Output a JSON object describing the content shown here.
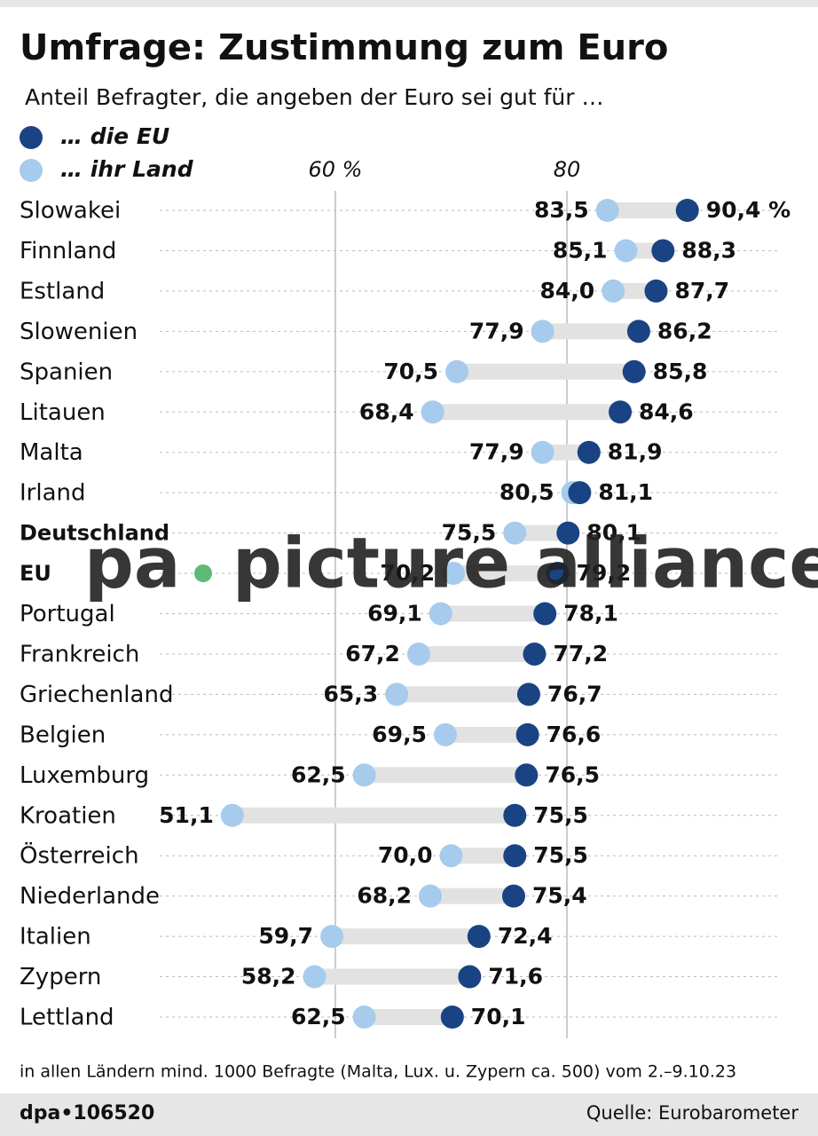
{
  "chart_data": {
    "type": "dumbbell",
    "title": "Umfrage: Zustimmung zum Euro",
    "subtitle": "Anteil Befragter, die angeben der Euro sei gut für …",
    "categories": [
      "Slowakei",
      "Finnland",
      "Estland",
      "Slowenien",
      "Spanien",
      "Litauen",
      "Malta",
      "Irland",
      "Deutschland",
      "EU",
      "Portugal",
      "Frankreich",
      "Griechenland",
      "Belgien",
      "Luxemburg",
      "Kroatien",
      "Österreich",
      "Niederlande",
      "Italien",
      "Zypern",
      "Lettland"
    ],
    "highlight_indices": [
      8,
      9
    ],
    "series": [
      {
        "name": "… die EU",
        "color": "#1a4383",
        "values": [
          90.4,
          88.3,
          87.7,
          86.2,
          85.8,
          84.6,
          81.9,
          81.1,
          80.1,
          79.2,
          78.1,
          77.2,
          76.7,
          76.6,
          76.5,
          75.5,
          75.5,
          75.4,
          72.4,
          71.6,
          70.1
        ],
        "value_labels": [
          "90,4 %",
          "88,3",
          "87,7",
          "86,2",
          "85,8",
          "84,6",
          "81,9",
          "81,1",
          "80,1",
          "79,2",
          "78,1",
          "77,2",
          "76,7",
          "76,6",
          "76,5",
          "75,5",
          "75,5",
          "75,4",
          "72,4",
          "71,6",
          "70,1"
        ]
      },
      {
        "name": "… ihr Land",
        "color": "#a6cbec",
        "values": [
          83.5,
          85.1,
          84.0,
          77.9,
          70.5,
          68.4,
          77.9,
          80.5,
          75.5,
          70.2,
          69.1,
          67.2,
          65.3,
          69.5,
          62.5,
          51.1,
          70.0,
          68.2,
          59.7,
          58.2,
          62.5
        ],
        "value_labels": [
          "83,5",
          "85,1",
          "84,0",
          "77,9",
          "70,5",
          "68,4",
          "77,9",
          "80,5",
          "75,5",
          "70,2",
          "69,1",
          "67,2",
          "65,3",
          "69,5",
          "62,5",
          "51,1",
          "70,0",
          "68,2",
          "59,7",
          "58,2",
          "62,5"
        ]
      }
    ],
    "xlim": [
      50,
      95
    ],
    "xticks": [
      {
        "value": 60,
        "label": "60 %"
      },
      80
    ],
    "grid": true,
    "note": "in allen Ländern mind. 1000 Befragte (Malta, Lux. u. Zypern ca. 500) vom 2.–9.10.23",
    "credit": "dpa•106520",
    "source": "Quelle: Eurobarometer",
    "watermark": {
      "left": "pa",
      "right": "picture alliance"
    }
  }
}
